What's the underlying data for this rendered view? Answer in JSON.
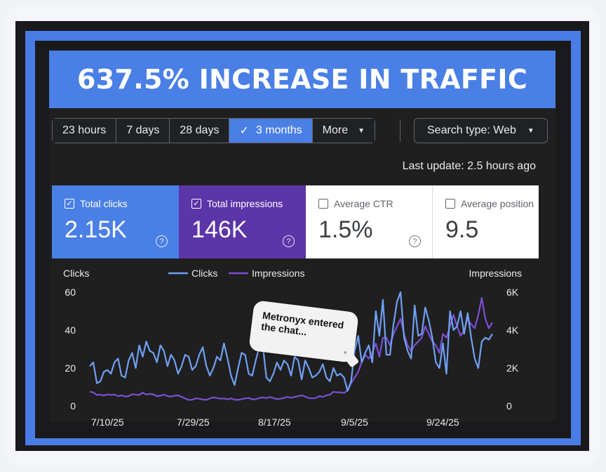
{
  "banner": {
    "title": "637.5% INCREASE IN TRAFFIC"
  },
  "toolbar": {
    "ranges": [
      "23 hours",
      "7 days",
      "28 days",
      "3 months"
    ],
    "active_check": "✓",
    "more_label": "More",
    "search_type_label": "Search type: Web",
    "caret": "▼"
  },
  "last_update": "Last update: 2.5 hours ago",
  "metrics": {
    "clicks": {
      "label": "Total clicks",
      "value": "2.15K",
      "checked": "✓"
    },
    "impressions": {
      "label": "Total impressions",
      "value": "146K",
      "checked": "✓"
    },
    "ctr": {
      "label": "Average CTR",
      "value": "1.5%"
    },
    "position": {
      "label": "Average position",
      "value": "9.5"
    },
    "help": "?"
  },
  "bubble": {
    "text": "Metronyx entered the chat...",
    "icon": "person-icon"
  },
  "colors": {
    "clicks": "#6ea0f4",
    "impressions": "#7b4fd6",
    "accent": "#4a7fe6"
  },
  "chart_data": {
    "type": "line",
    "left_axis_label": "Clicks",
    "right_axis_label": "Impressions",
    "left_ticks": [
      "60",
      "40",
      "20",
      "0"
    ],
    "right_ticks": [
      "6K",
      "4K",
      "2K",
      "0"
    ],
    "left_ylim": [
      0,
      60
    ],
    "right_ylim": [
      0,
      6000
    ],
    "x_labels": [
      "7/10/25",
      "7/29/25",
      "8/17/25",
      "9/5/25",
      "9/24/25"
    ],
    "series": [
      {
        "name": "Clicks",
        "values": [
          21,
          23,
          12,
          13,
          18,
          19,
          17,
          23,
          25,
          16,
          15,
          24,
          28,
          20,
          32,
          26,
          34,
          29,
          28,
          23,
          32,
          29,
          21,
          27,
          24,
          17,
          21,
          27,
          26,
          19,
          21,
          27,
          31,
          21,
          16,
          20,
          26,
          24,
          33,
          25,
          16,
          11,
          20,
          28,
          27,
          17,
          16,
          24,
          31,
          32,
          15,
          13,
          17,
          23,
          19,
          24,
          22,
          16,
          26,
          24,
          14,
          24,
          20,
          15,
          16,
          18,
          22,
          15,
          13,
          20,
          16,
          17,
          15,
          8,
          13,
          29,
          37,
          23,
          28,
          32,
          23,
          50,
          37,
          56,
          27,
          27,
          43,
          55,
          60,
          36,
          29,
          25,
          53,
          37,
          38,
          52,
          45,
          36,
          23,
          20,
          33,
          17,
          50,
          40,
          42,
          50,
          38,
          49,
          36,
          25,
          20,
          34,
          36,
          35,
          38
        ]
      },
      {
        "name": "Impressions",
        "values": [
          750,
          720,
          580,
          600,
          550,
          610,
          580,
          600,
          520,
          560,
          500,
          520,
          620,
          600,
          580,
          700,
          600,
          640,
          610,
          520,
          540,
          600,
          520,
          500,
          540,
          560,
          480,
          400,
          320,
          330,
          400,
          380,
          340,
          320,
          400,
          450,
          420,
          380,
          400,
          350,
          400,
          330,
          320,
          360,
          400,
          420,
          350,
          360,
          420,
          450,
          410,
          470,
          420,
          360,
          380,
          420,
          480,
          430,
          480,
          520,
          560,
          500,
          420,
          400,
          420,
          520,
          480,
          560,
          600,
          750,
          720,
          720,
          680,
          820,
          1200,
          1500,
          1800,
          2300,
          2700,
          2500,
          2800,
          3300,
          2600,
          3600,
          3600,
          3200,
          3800,
          4200,
          4600,
          3800,
          3200,
          2900,
          3200,
          3400,
          3600,
          4200,
          3800,
          3400,
          3200,
          2800,
          3800,
          3600,
          4200,
          4800,
          4200,
          3700,
          4000,
          4600,
          4300,
          4100,
          4800,
          5700,
          4600,
          4100,
          4400
        ]
      }
    ]
  }
}
